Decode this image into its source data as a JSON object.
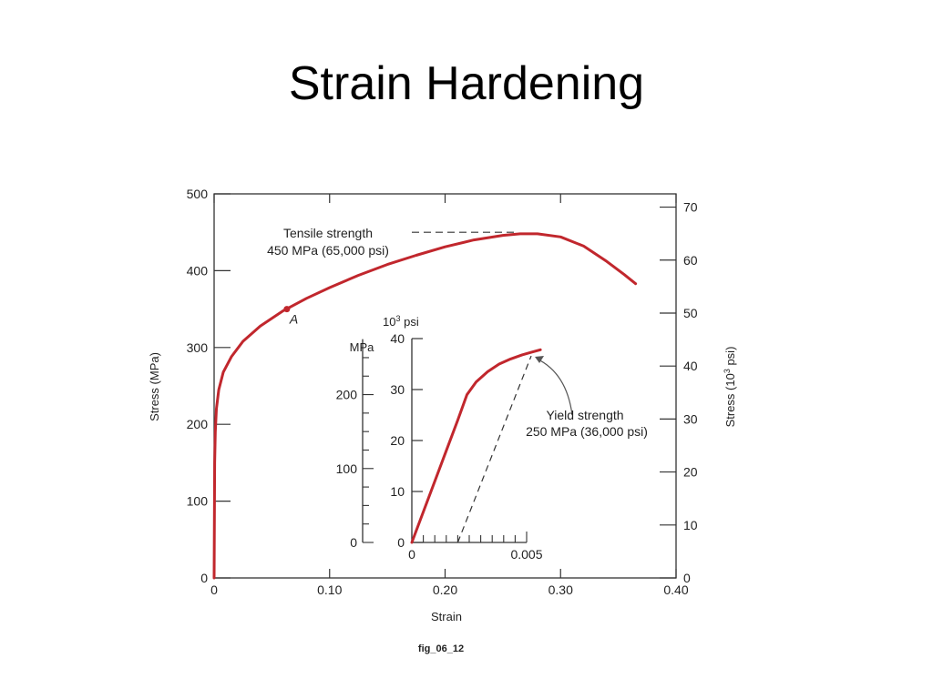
{
  "slide": {
    "title": "Strain Hardening"
  },
  "figure": {
    "caption": "fig_06_12"
  },
  "colors": {
    "curve": "#c1272d",
    "axis": "#333333",
    "text": "#222222"
  },
  "chart_data": [
    {
      "type": "line",
      "xlabel": "Strain",
      "ylabel": "Stress (MPa)",
      "y2label_parts": [
        "Stress (10",
        "3",
        " psi)"
      ],
      "xlim": [
        0,
        0.4
      ],
      "ylim": [
        0,
        500
      ],
      "y2lim": [
        0,
        72.5
      ],
      "x_ticks": [
        0,
        0.1,
        0.2,
        0.3,
        0.4
      ],
      "x_tick_labels": [
        "0",
        "0.10",
        "0.20",
        "0.30",
        "0.40"
      ],
      "y_ticks": [
        0,
        100,
        200,
        300,
        400,
        500
      ],
      "y_tick_labels": [
        "0",
        "100",
        "200",
        "300",
        "400",
        "500"
      ],
      "y2_ticks": [
        0,
        10,
        20,
        30,
        40,
        50,
        60,
        70
      ],
      "y2_tick_labels": [
        "0",
        "10",
        "20",
        "30",
        "40",
        "50",
        "60",
        "70"
      ],
      "series": [
        {
          "x": [
            0,
            0.0005,
            0.001,
            0.002,
            0.004,
            0.008,
            0.015,
            0.025,
            0.04,
            0.06,
            0.08,
            0.1,
            0.125,
            0.15,
            0.175,
            0.2,
            0.225,
            0.25,
            0.265,
            0.28,
            0.3,
            0.32,
            0.34,
            0.355,
            0.365
          ],
          "y": [
            0,
            150,
            190,
            220,
            245,
            268,
            288,
            308,
            328,
            348,
            364,
            378,
            394,
            408,
            420,
            431,
            440,
            446,
            448,
            448,
            444,
            432,
            412,
            395,
            383
          ]
        }
      ],
      "point_a": {
        "x": 0.063,
        "y": 350,
        "label": "A"
      },
      "tensile_strength": {
        "line1": "Tensile strength",
        "line2": "450 MPa (65,000 psi)",
        "y": 450
      }
    },
    {
      "type": "line",
      "inset": true,
      "xlim": [
        0,
        0.005
      ],
      "left_axis_label": "MPa",
      "left_axis_ticks": [
        0,
        100,
        200
      ],
      "left_axis_tick_labels": [
        "0",
        "100",
        "200"
      ],
      "psi_axis_label_parts": [
        "10",
        "3",
        " psi"
      ],
      "psi_axis_ticks": [
        0,
        10,
        20,
        30,
        40
      ],
      "psi_axis_tick_labels": [
        "0",
        "10",
        "20",
        "30",
        "40"
      ],
      "x_tick_values": [
        0,
        0.0005,
        0.001,
        0.0015,
        0.002,
        0.0025,
        0.003,
        0.0035,
        0.004,
        0.0045,
        0.005
      ],
      "x_tick_labels": [
        "0",
        "0.005"
      ],
      "series": [
        {
          "x": [
            0,
            0.0015,
            0.002,
            0.0024,
            0.0028,
            0.0033,
            0.0038,
            0.0043,
            0.0048,
            0.0052,
            0.0056
          ],
          "y": [
            0,
            18,
            24,
            29,
            31.5,
            33.5,
            35,
            36,
            36.8,
            37.3,
            37.8
          ]
        }
      ],
      "offset_line": {
        "x": [
          0.002,
          0.0052
        ],
        "y": [
          0,
          36.6
        ]
      },
      "yield_strength": {
        "line1": "Yield strength",
        "line2": "250 MPa (36,000 psi)"
      }
    }
  ]
}
